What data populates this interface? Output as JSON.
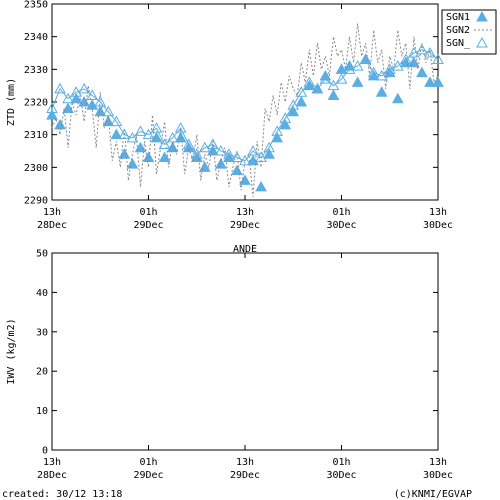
{
  "colors": {
    "series": "#5aaee4",
    "dashed": "#888888",
    "axis": "#000000"
  },
  "footer": {
    "created": "created: 30/12 13:18",
    "credit": "(c)KNMI/EGVAP"
  },
  "chart_data": [
    {
      "type": "scatter",
      "title": "",
      "ylabel": "ZTD (mm)",
      "xlabel": "",
      "ylim": [
        2290,
        2350
      ],
      "yticks": [
        2290,
        2300,
        2310,
        2320,
        2330,
        2340,
        2350
      ],
      "xlim_hours": [
        0,
        48
      ],
      "x_ticks": [
        {
          "hour": 0,
          "time": "13h",
          "date": "28Dec"
        },
        {
          "hour": 12,
          "time": "01h",
          "date": "29Dec"
        },
        {
          "hour": 24,
          "time": "13h",
          "date": "29Dec"
        },
        {
          "hour": 36,
          "time": "01h",
          "date": "30Dec"
        },
        {
          "hour": 48,
          "time": "13h",
          "date": "30Dec"
        }
      ],
      "legend": {
        "position": "top-right",
        "entries": [
          "SGN1",
          "SGN2",
          "SGN_"
        ]
      },
      "series": [
        {
          "name": "SGN1",
          "style": "filled-triangle",
          "x": [
            0.0,
            1.0,
            2.0,
            3.0,
            4.0,
            5.0,
            6.0,
            7.0,
            8.0,
            9.0,
            10.0,
            11.0,
            12.0,
            13.0,
            14.0,
            15.0,
            16.0,
            17.0,
            18.0,
            19.0,
            20.0,
            21.0,
            22.0,
            23.0,
            24.0,
            25.0,
            26.0,
            27.0,
            28.0,
            29.0,
            30.0,
            31.0,
            32.0,
            33.0,
            34.0,
            35.0,
            36.0,
            37.0,
            38.0,
            39.0,
            40.0,
            41.0,
            42.0,
            43.0,
            44.0,
            45.0,
            46.0,
            47.0,
            48.0
          ],
          "y": [
            2316,
            2313,
            2318,
            2321,
            2320,
            2319,
            2317,
            2314,
            2310,
            2304,
            2301,
            2306,
            2303,
            2309,
            2303,
            2306,
            2309,
            2306,
            2303,
            2300,
            2305,
            2301,
            2303,
            2299,
            2296,
            2302,
            2294,
            2304,
            2309,
            2313,
            2317,
            2320,
            2325,
            2324,
            2328,
            2322,
            2330,
            2331,
            2326,
            2333,
            2328,
            2323,
            2329,
            2321,
            2332,
            2332,
            2329,
            2326,
            2326
          ]
        },
        {
          "name": "SGN2",
          "style": "dashed-line",
          "x": [
            0.0,
            0.5,
            1.0,
            1.5,
            2.0,
            2.5,
            3.0,
            3.5,
            4.0,
            4.5,
            5.0,
            5.5,
            6.0,
            6.5,
            7.0,
            7.5,
            8.0,
            8.5,
            9.0,
            9.5,
            10.0,
            10.5,
            11.0,
            11.5,
            12.0,
            12.5,
            13.0,
            13.5,
            14.0,
            14.5,
            15.0,
            15.5,
            16.0,
            16.5,
            17.0,
            17.5,
            18.0,
            18.5,
            19.0,
            19.5,
            20.0,
            20.5,
            21.0,
            21.5,
            22.0,
            22.5,
            23.0,
            23.5,
            24.0,
            24.5,
            25.0,
            25.5,
            26.0,
            26.5,
            27.0,
            27.5,
            28.0,
            28.5,
            29.0,
            29.5,
            30.0,
            30.5,
            31.0,
            31.5,
            32.0,
            32.5,
            33.0,
            33.5,
            34.0,
            34.5,
            35.0,
            35.5,
            36.0,
            36.5,
            37.0,
            37.5,
            38.0,
            38.5,
            39.0,
            39.5,
            40.0,
            40.5,
            41.0,
            41.5,
            42.0,
            42.5,
            43.0,
            43.5,
            44.0,
            44.5,
            45.0,
            45.5,
            46.0,
            46.5,
            47.0,
            47.5,
            48.0
          ],
          "y": [
            2312,
            2315,
            2310,
            2318,
            2306,
            2320,
            2316,
            2322,
            2314,
            2325,
            2318,
            2306,
            2323,
            2312,
            2316,
            2302,
            2308,
            2300,
            2312,
            2296,
            2304,
            2310,
            2294,
            2308,
            2300,
            2316,
            2298,
            2306,
            2314,
            2300,
            2308,
            2304,
            2312,
            2298,
            2306,
            2302,
            2310,
            2296,
            2304,
            2300,
            2308,
            2296,
            2302,
            2306,
            2294,
            2300,
            2305,
            2293,
            2302,
            2304,
            2291,
            2308,
            2300,
            2318,
            2314,
            2322,
            2316,
            2326,
            2320,
            2328,
            2324,
            2322,
            2332,
            2326,
            2336,
            2328,
            2338,
            2330,
            2334,
            2328,
            2340,
            2334,
            2336,
            2330,
            2340,
            2332,
            2344,
            2334,
            2338,
            2328,
            2342,
            2332,
            2336,
            2324,
            2334,
            2330,
            2342,
            2334,
            2338,
            2324,
            2340,
            2330,
            2338,
            2332,
            2336,
            2326,
            2328
          ]
        },
        {
          "name": "SGN_",
          "style": "open-triangle",
          "x": [
            0.0,
            1.0,
            2.0,
            3.0,
            4.0,
            5.0,
            6.0,
            7.0,
            8.0,
            9.0,
            10.0,
            11.0,
            12.0,
            13.0,
            14.0,
            15.0,
            16.0,
            17.0,
            18.0,
            19.0,
            20.0,
            21.0,
            22.0,
            23.0,
            24.0,
            25.0,
            26.0,
            27.0,
            28.0,
            29.0,
            30.0,
            31.0,
            32.0,
            33.0,
            34.0,
            35.0,
            36.0,
            37.0,
            38.0,
            39.0,
            40.0,
            41.0,
            42.0,
            43.0,
            44.0,
            45.0,
            46.0,
            47.0,
            48.0
          ],
          "y": [
            2318,
            2324,
            2321,
            2323,
            2324,
            2322,
            2320,
            2317,
            2314,
            2310,
            2309,
            2311,
            2310,
            2312,
            2307,
            2309,
            2312,
            2307,
            2304,
            2306,
            2307,
            2305,
            2304,
            2303,
            2302,
            2305,
            2303,
            2306,
            2311,
            2315,
            2319,
            2323,
            2326,
            2324,
            2327,
            2325,
            2327,
            2330,
            2331,
            2333,
            2329,
            2328,
            2330,
            2331,
            2333,
            2335,
            2336,
            2335,
            2333
          ]
        }
      ]
    },
    {
      "type": "scatter",
      "title": "ANDE",
      "ylabel": "IWV (kg/m2)",
      "xlabel": "",
      "ylim": [
        0,
        50
      ],
      "yticks": [
        0,
        10,
        20,
        30,
        40,
        50
      ],
      "xlim_hours": [
        0,
        48
      ],
      "x_ticks": [
        {
          "hour": 0,
          "time": "13h",
          "date": "28Dec"
        },
        {
          "hour": 12,
          "time": "01h",
          "date": "29Dec"
        },
        {
          "hour": 24,
          "time": "13h",
          "date": "29Dec"
        },
        {
          "hour": 36,
          "time": "01h",
          "date": "30Dec"
        },
        {
          "hour": 48,
          "time": "13h",
          "date": "30Dec"
        }
      ],
      "series": []
    }
  ]
}
